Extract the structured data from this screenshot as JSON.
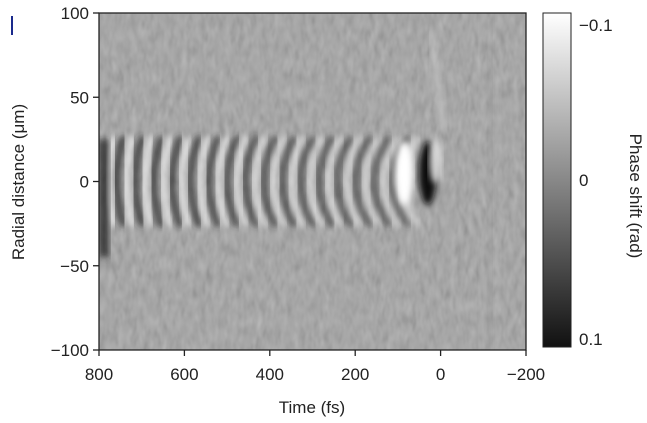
{
  "chart_data": {
    "type": "heatmap",
    "title": "",
    "xlabel": "Time (fs)",
    "ylabel": "Radial distance (μm)",
    "xlim": [
      800,
      -200
    ],
    "ylim": [
      -100,
      100
    ],
    "x_ticks": [
      "800",
      "600",
      "400",
      "200",
      "0",
      "−200"
    ],
    "x_tick_values": [
      800,
      600,
      400,
      200,
      0,
      -200
    ],
    "y_ticks": [
      "100",
      "50",
      "0",
      "−50",
      "−100"
    ],
    "y_tick_values": [
      100,
      50,
      0,
      -50,
      -100
    ],
    "colorbar": {
      "label": "Phase shift (rad)",
      "range": [
        -0.1,
        0.1
      ],
      "ticks": [
        "−0.1",
        "0",
        "0.1"
      ],
      "tick_values": [
        -0.1,
        0,
        0.1
      ],
      "colormap": "grayscale (white = −0.1, black = 0.1)"
    },
    "grid": false,
    "features": {
      "wake_period_fs": 43,
      "wake_extent_fs": [
        780,
        80
      ],
      "wake_radius_um": 25,
      "driver_pulse_center_fs": 30,
      "driver_pulse_phase_rad": 0.1,
      "bright_leading_edge_fs": 55
    }
  },
  "colors": {
    "background_gray": "#9a9a9a",
    "max_phase": "#111111",
    "min_phase": "#ffffff",
    "axis": "#222222"
  }
}
